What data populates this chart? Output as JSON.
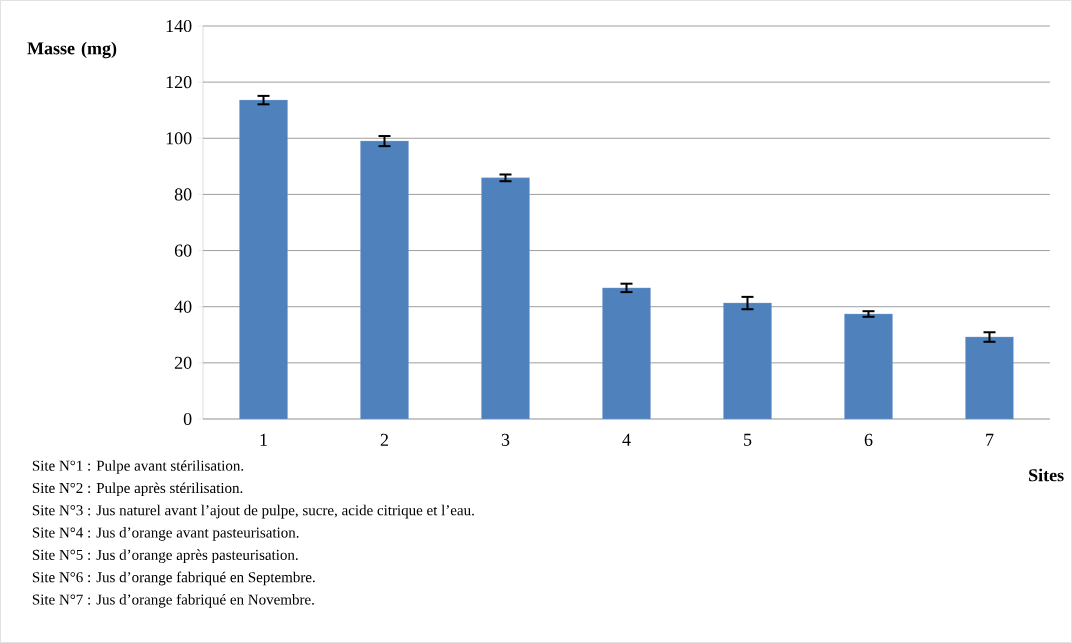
{
  "chart_data": {
    "type": "bar",
    "xlabel": "Sites",
    "ylabel": "Masse (mg)",
    "categories": [
      "1",
      "2",
      "3",
      "4",
      "5",
      "6",
      "7"
    ],
    "values": [
      113.6,
      99,
      85.9,
      46.7,
      41.3,
      37.4,
      29.2
    ],
    "errors": [
      1.5,
      1.8,
      1.2,
      1.5,
      2.2,
      1.0,
      1.7
    ],
    "color": "#4f81bd",
    "ylim": [
      0,
      140
    ],
    "yticks": [
      0,
      20,
      40,
      60,
      80,
      100,
      120,
      140
    ],
    "grid": "y",
    "annotations": [
      "Site N°1 : Pulpe avant stérilisation.",
      "Site N°2 : Pulpe après stérilisation.",
      "Site N°3 : Jus naturel avant l’ajout de pulpe, sucre, acide citrique et l’eau.",
      "Site N°4 : Jus d’orange avant pasteurisation.",
      "Site N°5 : Jus d’orange après pasteurisation.",
      "Site N°6 : Jus d’orange fabriqué en Septembre.",
      "Site N°7 : Jus d’orange fabriqué en Novembre."
    ]
  }
}
